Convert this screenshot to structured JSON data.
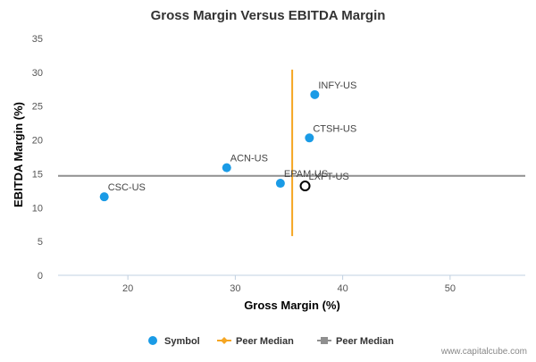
{
  "chart_data": {
    "type": "scatter",
    "title": "Gross Margin Versus EBITDA Margin",
    "xlabel": "Gross Margin (%)",
    "ylabel": "EBITDA Margin (%)",
    "xlim": [
      13.5,
      57
    ],
    "ylim": [
      0,
      35
    ],
    "x_ticks": [
      20,
      30,
      40,
      50
    ],
    "y_ticks": [
      0,
      5,
      10,
      15,
      20,
      25,
      30,
      35
    ],
    "grid": false,
    "legend_position": "bottom",
    "points": [
      {
        "label": "CSC-US",
        "x": 17.8,
        "y": 11.6,
        "style": "filled"
      },
      {
        "label": "ACN-US",
        "x": 29.2,
        "y": 15.9,
        "style": "filled"
      },
      {
        "label": "EPAM-US",
        "x": 34.2,
        "y": 13.6,
        "style": "filled"
      },
      {
        "label": "CTSH-US",
        "x": 36.9,
        "y": 20.3,
        "style": "filled"
      },
      {
        "label": "INFY-US",
        "x": 37.4,
        "y": 26.7,
        "style": "filled"
      },
      {
        "label": "LXFT-US",
        "x": 36.5,
        "y": 13.2,
        "style": "hollow"
      }
    ],
    "peer_median_x": 35.3,
    "peer_median_x_range": [
      5.8,
      30.4
    ],
    "peer_median_y": 14.7,
    "legend": [
      {
        "name": "Symbol",
        "marker": "circle",
        "color": "#1a9be6"
      },
      {
        "name": "Peer Median",
        "marker": "diamond-line",
        "color": "#f5a623"
      },
      {
        "name": "Peer Median",
        "marker": "square-line",
        "color": "#8f8f8f"
      }
    ],
    "colors": {
      "point": "#1a9be6",
      "x_median": "#f5a623",
      "y_median": "#8f8f8f",
      "axis": "#c0d0e0"
    }
  },
  "credit": "www.capitalcube.com"
}
